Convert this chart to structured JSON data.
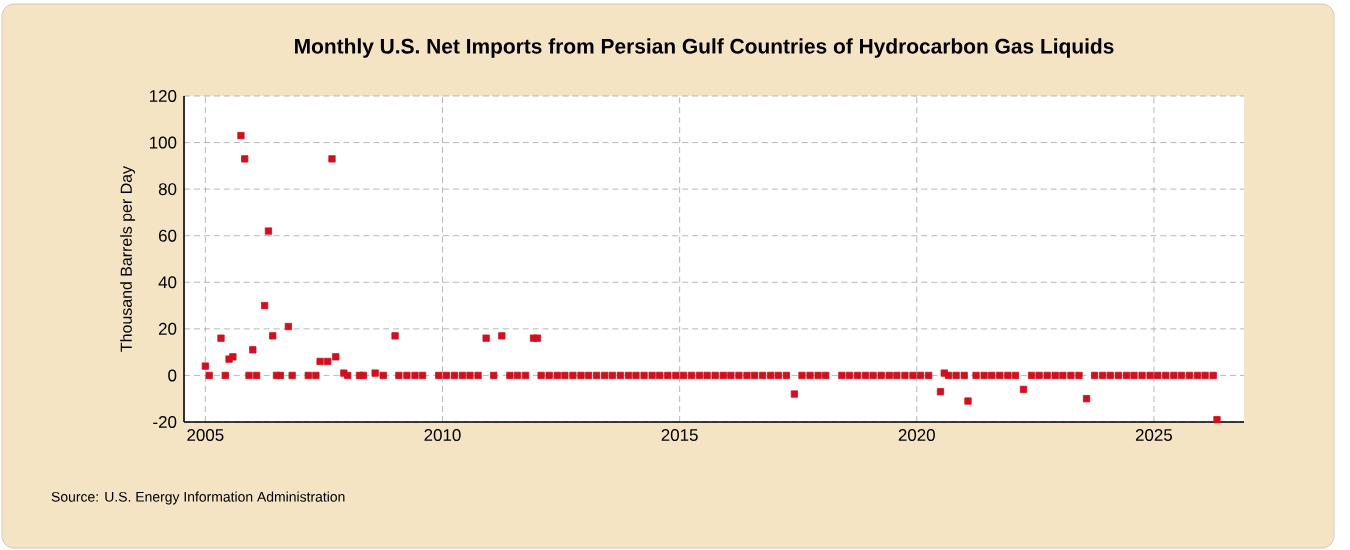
{
  "chart_data": {
    "type": "scatter",
    "title": "Monthly U.S. Net Imports from Persian Gulf Countries of Hydrocarbon Gas Liquids",
    "ylabel": "Thousand Barrels per Day",
    "annotations": [
      "Source: U.S. Energy Information Administration"
    ],
    "x": [
      2005.0,
      2005.08,
      2005.33,
      2005.42,
      2005.5,
      2005.58,
      2005.75,
      2005.83,
      2005.92,
      2006.0,
      2006.08,
      2006.25,
      2006.33,
      2006.42,
      2006.5,
      2006.58,
      2006.75,
      2006.83,
      2007.17,
      2007.33,
      2007.42,
      2007.58,
      2007.67,
      2007.75,
      2007.92,
      2008.0,
      2008.25,
      2008.33,
      2008.58,
      2008.75,
      2009.0,
      2009.08,
      2009.25,
      2009.42,
      2009.58,
      2009.92,
      2010.08,
      2010.25,
      2010.42,
      2010.58,
      2010.75,
      2010.92,
      2011.08,
      2011.25,
      2011.42,
      2011.58,
      2011.75,
      2011.92,
      2012.0,
      2012.08,
      2012.25,
      2012.42,
      2012.58,
      2012.75,
      2012.92,
      2013.08,
      2013.25,
      2013.42,
      2013.58,
      2013.75,
      2013.92,
      2014.08,
      2014.25,
      2014.42,
      2014.58,
      2014.75,
      2014.92,
      2015.08,
      2015.25,
      2015.42,
      2015.58,
      2015.75,
      2015.92,
      2016.08,
      2016.25,
      2016.42,
      2016.58,
      2016.75,
      2016.92,
      2017.08,
      2017.25,
      2017.42,
      2017.58,
      2017.75,
      2017.92,
      2018.08,
      2018.42,
      2018.58,
      2018.75,
      2018.92,
      2019.08,
      2019.25,
      2019.42,
      2019.58,
      2019.75,
      2019.92,
      2020.08,
      2020.25,
      2020.5,
      2020.58,
      2020.67,
      2020.83,
      2021.0,
      2021.08,
      2021.25,
      2021.42,
      2021.58,
      2021.75,
      2021.92,
      2022.08,
      2022.25,
      2022.42,
      2022.58,
      2022.75,
      2022.92,
      2023.08,
      2023.25,
      2023.42,
      2023.58,
      2023.75,
      2023.92,
      2024.08,
      2024.25,
      2024.42,
      2024.58,
      2024.75,
      2024.92,
      2025.08,
      2025.25,
      2025.42,
      2025.58,
      2025.75,
      2025.92,
      2026.08,
      2026.25,
      2026.33
    ],
    "values": [
      4,
      0,
      16,
      0,
      7,
      8,
      103,
      93,
      0,
      11,
      0,
      30,
      62,
      17,
      0,
      0,
      21,
      0,
      0,
      0,
      6,
      6,
      93,
      8,
      1,
      0,
      0,
      0,
      1,
      0,
      17,
      0,
      0,
      0,
      0,
      0,
      0,
      0,
      0,
      0,
      0,
      16,
      0,
      17,
      0,
      0,
      0,
      16,
      16,
      0,
      0,
      0,
      0,
      0,
      0,
      0,
      0,
      0,
      0,
      0,
      0,
      0,
      0,
      0,
      0,
      0,
      0,
      0,
      0,
      0,
      0,
      0,
      0,
      0,
      0,
      0,
      0,
      0,
      0,
      0,
      0,
      -8,
      0,
      0,
      0,
      0,
      0,
      0,
      0,
      0,
      0,
      0,
      0,
      0,
      0,
      0,
      0,
      0,
      -7,
      1,
      0,
      0,
      0,
      -11,
      0,
      0,
      0,
      0,
      0,
      0,
      -6,
      0,
      0,
      0,
      0,
      0,
      0,
      0,
      -10,
      0,
      0,
      0,
      0,
      0,
      0,
      0,
      0,
      0,
      0,
      0,
      0,
      0,
      0,
      0,
      0,
      -19
    ],
    "color": "#d0101e",
    "marker": "square",
    "xlim": [
      2004.55,
      2026.9
    ],
    "ylim": [
      -20,
      120
    ],
    "xticks": [
      2005,
      2010,
      2015,
      2020,
      2025
    ],
    "yticks": [
      -20,
      0,
      20,
      40,
      60,
      80,
      100,
      120
    ],
    "grid": true
  }
}
